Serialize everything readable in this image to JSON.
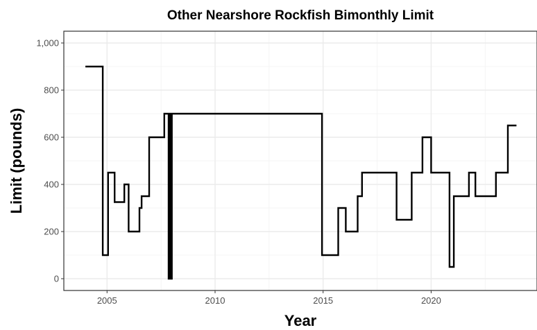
{
  "chart_data": {
    "type": "line",
    "step": true,
    "title": "Other Nearshore Rockfish Bimonthly Limit",
    "xlabel": "Year",
    "ylabel": "Limit (pounds)",
    "xlim": [
      2003.0,
      2024.9
    ],
    "ylim": [
      -50,
      1050
    ],
    "x_ticks": [
      2005,
      2010,
      2015,
      2020
    ],
    "x_tick_labels": [
      "2005",
      "2010",
      "2015",
      "2020"
    ],
    "y_ticks": [
      0,
      200,
      400,
      600,
      800,
      1000
    ],
    "y_tick_labels": [
      "0",
      "200",
      "400",
      "600",
      "800",
      "1,000"
    ],
    "grid": true,
    "series": [
      {
        "color": "#000000",
        "points": [
          [
            2004.0,
            900
          ],
          [
            2004.8,
            900
          ],
          [
            2004.8,
            100
          ],
          [
            2005.05,
            100
          ],
          [
            2005.05,
            450
          ],
          [
            2005.35,
            450
          ],
          [
            2005.35,
            325
          ],
          [
            2005.8,
            325
          ],
          [
            2005.8,
            400
          ],
          [
            2006.0,
            400
          ],
          [
            2006.0,
            200
          ],
          [
            2006.5,
            200
          ],
          [
            2006.5,
            300
          ],
          [
            2006.6,
            300
          ],
          [
            2006.6,
            350
          ],
          [
            2006.95,
            350
          ],
          [
            2006.95,
            600
          ],
          [
            2007.65,
            600
          ],
          [
            2007.65,
            700
          ],
          [
            2007.85,
            700
          ],
          [
            2007.85,
            0
          ],
          [
            2007.9,
            0
          ],
          [
            2007.9,
            700
          ],
          [
            2007.95,
            700
          ],
          [
            2007.95,
            0
          ],
          [
            2008.0,
            0
          ],
          [
            2008.0,
            700
          ],
          [
            2014.95,
            700
          ],
          [
            2014.95,
            100
          ],
          [
            2015.7,
            100
          ],
          [
            2015.7,
            300
          ],
          [
            2016.05,
            300
          ],
          [
            2016.05,
            200
          ],
          [
            2016.6,
            200
          ],
          [
            2016.6,
            350
          ],
          [
            2016.8,
            350
          ],
          [
            2016.8,
            450
          ],
          [
            2018.4,
            450
          ],
          [
            2018.4,
            250
          ],
          [
            2019.1,
            250
          ],
          [
            2019.1,
            450
          ],
          [
            2019.6,
            450
          ],
          [
            2019.6,
            600
          ],
          [
            2020.0,
            600
          ],
          [
            2020.0,
            450
          ],
          [
            2020.85,
            450
          ],
          [
            2020.85,
            50
          ],
          [
            2021.05,
            50
          ],
          [
            2021.05,
            350
          ],
          [
            2021.75,
            350
          ],
          [
            2021.75,
            450
          ],
          [
            2022.05,
            450
          ],
          [
            2022.05,
            350
          ],
          [
            2023.0,
            350
          ],
          [
            2023.0,
            450
          ],
          [
            2023.55,
            450
          ],
          [
            2023.55,
            650
          ],
          [
            2023.95,
            650
          ]
        ]
      }
    ]
  }
}
